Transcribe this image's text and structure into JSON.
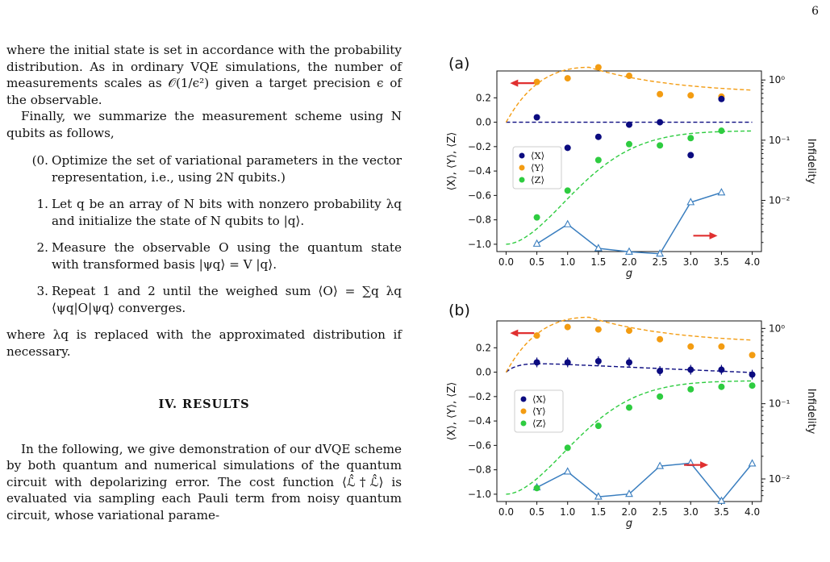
{
  "page_number": "6",
  "text": {
    "para1": "where the initial state is set in accordance with the probability distribution. As in ordinary VQE simulations, the number of measurements scales as 𝒪(1/ϵ²) given a target precision ϵ of the observable.",
    "para2": "Finally, we summarize the measurement scheme using N qubits as follows,",
    "steps": [
      {
        "num": "(0.",
        "text": "Optimize the set of variational parameters in the vector representation, i.e., using 2N qubits.)"
      },
      {
        "num": "1.",
        "text": "Let q be an array of N bits with nonzero probability λq and initialize the state of N qubits to |q⟩."
      },
      {
        "num": "2.",
        "text": "Measure the observable O using the quantum state with transformed basis |ψq⟩ = V |q⟩."
      },
      {
        "num": "3.",
        "text": "Repeat 1 and 2 until the weighed sum ⟨O⟩ = ∑q λq ⟨ψq|O|ψq⟩ converges."
      }
    ],
    "para3": "where λq is replaced with the approximated distribution if necessary.",
    "section_title": "IV.   RESULTS",
    "para4": "In the following, we give demonstration of our dVQE scheme by both quantum and numerical simulations of the quantum circuit with depolarizing error. The cost function ⟨ℒ̂†ℒ̂⟩ is evaluated via sampling each Pauli term from noisy quantum circuit, whose variational parame-"
  },
  "figure": {
    "panel_a_label": "(a)",
    "panel_b_label": "(b)",
    "x_axis_label": "g",
    "y_axis_label": "⟨X⟩, ⟨Y⟩, ⟨Z⟩",
    "y2_axis_label": "Infidelity",
    "x_ticks": [
      "0.0",
      "0.5",
      "1.0",
      "1.5",
      "2.0",
      "2.5",
      "3.0",
      "3.5",
      "4.0"
    ],
    "y_ticks": [
      "0.2",
      "0.0",
      "−0.2",
      "−0.4",
      "−0.6",
      "−0.8",
      "−1.0"
    ],
    "y2_ticks_a": [
      "10⁰",
      "10⁻¹",
      "10⁻²"
    ],
    "y2_ticks_b": [
      "10⁰",
      "10⁻¹",
      "10⁻²"
    ],
    "legend": [
      "⟨X⟩",
      "⟨Y⟩",
      "⟨Z⟩"
    ],
    "colors": {
      "X": "#0b0b80",
      "Y": "#f39c12",
      "Z": "#2ecc40",
      "infidelity": "#3a7ebf",
      "arrow": "#e03030"
    }
  },
  "chart_data": [
    {
      "type": "scatter",
      "panel": "(a)",
      "xlabel": "g",
      "ylabel": "⟨X⟩, ⟨Y⟩, ⟨Z⟩",
      "y2label": "Infidelity",
      "xlim": [
        -0.15,
        4.15
      ],
      "ylim": [
        -1.06,
        0.42
      ],
      "y2_log_range": [
        -2.85,
        0.15
      ],
      "series": [
        {
          "name": "⟨X⟩",
          "x": [
            0.5,
            1.0,
            1.5,
            2.0,
            2.5,
            3.0,
            3.5
          ],
          "y": [
            0.04,
            -0.21,
            -0.12,
            -0.02,
            0.0,
            -0.27,
            0.19
          ]
        },
        {
          "name": "⟨Y⟩",
          "x": [
            0.5,
            1.0,
            1.5,
            2.0,
            2.5,
            3.0,
            3.5
          ],
          "y": [
            0.33,
            0.36,
            0.45,
            0.38,
            0.23,
            0.22,
            0.21
          ]
        },
        {
          "name": "⟨Z⟩",
          "x": [
            0.5,
            1.0,
            1.5,
            2.0,
            2.5,
            3.0,
            3.5
          ],
          "y": [
            -0.78,
            -0.56,
            -0.31,
            -0.18,
            -0.19,
            -0.13,
            -0.07
          ]
        },
        {
          "x": [
            0.5,
            1.0,
            1.5,
            2.0,
            2.5,
            3.0,
            3.5
          ],
          "infidelity": [
            0.0019,
            0.004,
            0.0016,
            0.0014,
            0.0013,
            0.0093,
            0.0135
          ]
        }
      ],
      "arrows": [
        {
          "direction": "left",
          "x": 0.3,
          "y": 0.32
        },
        {
          "direction": "right",
          "x": 3.2,
          "y": -0.93
        }
      ]
    },
    {
      "type": "scatter",
      "panel": "(b)",
      "xlabel": "g",
      "ylabel": "⟨X⟩, ⟨Y⟩, ⟨Z⟩",
      "y2label": "Infidelity",
      "xlim": [
        -0.15,
        4.15
      ],
      "ylim": [
        -1.06,
        0.42
      ],
      "y2_log_range": [
        -2.3,
        0.1
      ],
      "series": [
        {
          "name": "⟨X⟩",
          "x": [
            0.5,
            1.0,
            1.5,
            2.0,
            2.5,
            3.0,
            3.5,
            4.0
          ],
          "y": [
            0.08,
            0.08,
            0.09,
            0.08,
            0.01,
            0.02,
            0.02,
            -0.02
          ]
        },
        {
          "name": "⟨Y⟩",
          "x": [
            0.5,
            1.0,
            1.5,
            2.0,
            2.5,
            3.0,
            3.5,
            4.0
          ],
          "y": [
            0.3,
            0.37,
            0.35,
            0.34,
            0.27,
            0.21,
            0.21,
            0.14
          ]
        },
        {
          "name": "⟨Z⟩",
          "x": [
            0.5,
            1.0,
            1.5,
            2.0,
            2.5,
            3.0,
            3.5,
            4.0
          ],
          "y": [
            -0.95,
            -0.62,
            -0.44,
            -0.29,
            -0.2,
            -0.14,
            -0.12,
            -0.11
          ]
        },
        {
          "x": [
            0.5,
            1.0,
            1.5,
            2.0,
            2.5,
            3.0,
            3.5,
            4.0
          ],
          "infidelity": [
            0.0077,
            0.0125,
            0.0058,
            0.0063,
            0.0148,
            0.0162,
            0.0051,
            0.016
          ]
        }
      ],
      "arrows": [
        {
          "direction": "left",
          "x": 0.3,
          "y": 0.32
        },
        {
          "direction": "right",
          "x": 3.05,
          "y": -0.76
        }
      ]
    }
  ]
}
